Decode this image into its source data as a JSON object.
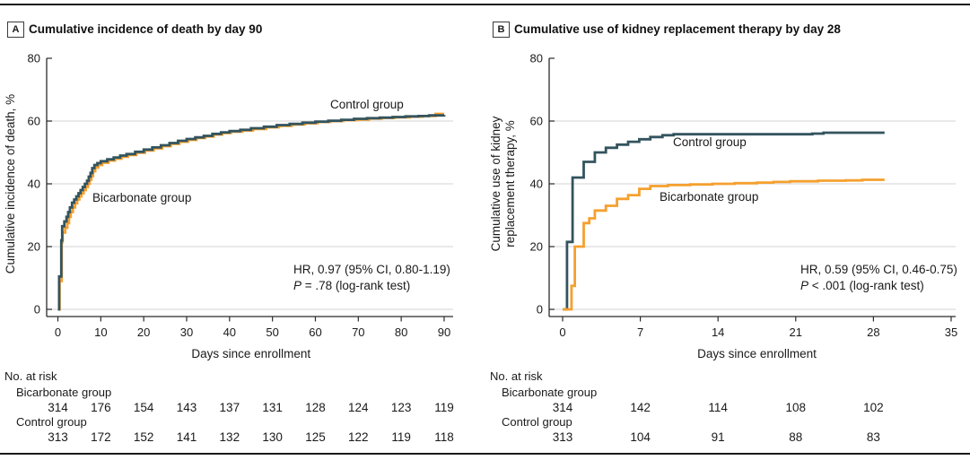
{
  "chart_data": [
    {
      "type": "line",
      "step": true,
      "panel": "A",
      "title": "Cumulative incidence of death by day 90",
      "xlabel": "Days since enrollment",
      "ylabel": "Cumulative incidence of death, %",
      "ylabel_lines": [
        "Cumulative incidence of death, %"
      ],
      "xlim": [
        0,
        90
      ],
      "ylim": [
        0,
        80
      ],
      "x_ticks": [
        0,
        10,
        20,
        30,
        40,
        50,
        60,
        70,
        80,
        90
      ],
      "y_ticks": [
        0,
        20,
        40,
        60,
        80
      ],
      "grid": "horizontal",
      "legend_position": "inline-labels",
      "annotation": [
        "HR, 0.97 (95% CI, 0.80-1.19)",
        "P = .78 (log-rank test)"
      ],
      "series": [
        {
          "name": "Bicarbonate group",
          "color": "#F5A02F",
          "points": [
            [
              0,
              0
            ],
            [
              0.4,
              9
            ],
            [
              0.9,
              21.5
            ],
            [
              1.1,
              24.5
            ],
            [
              1.7,
              26
            ],
            [
              2.2,
              27.5
            ],
            [
              2.6,
              29.5
            ],
            [
              3.0,
              31
            ],
            [
              3.5,
              32.5
            ],
            [
              4.0,
              33.8
            ],
            [
              4.5,
              35
            ],
            [
              5.0,
              36
            ],
            [
              5.5,
              37
            ],
            [
              6.0,
              38
            ],
            [
              6.5,
              39
            ],
            [
              7.0,
              40
            ],
            [
              7.4,
              41.3
            ],
            [
              7.8,
              42.5
            ],
            [
              8.2,
              44
            ],
            [
              8.7,
              45.2
            ],
            [
              9.4,
              46
            ],
            [
              10.3,
              46.7
            ],
            [
              11.8,
              47.4
            ],
            [
              13.3,
              48
            ],
            [
              14.8,
              48.6
            ],
            [
              16.3,
              49.2
            ],
            [
              18.3,
              49.9
            ],
            [
              20.3,
              50.6
            ],
            [
              22.3,
              51.3
            ],
            [
              24.3,
              52
            ],
            [
              26.3,
              52.7
            ],
            [
              28.3,
              53.4
            ],
            [
              30.3,
              54
            ],
            [
              32.3,
              54.6
            ],
            [
              34.3,
              55.1
            ],
            [
              36.3,
              55.7
            ],
            [
              38.3,
              56.2
            ],
            [
              40.3,
              56.6
            ],
            [
              43,
              57
            ],
            [
              45.5,
              57.5
            ],
            [
              48.5,
              58
            ],
            [
              51.5,
              58.5
            ],
            [
              54.5,
              58.9
            ],
            [
              57.5,
              59.3
            ],
            [
              60.5,
              59.7
            ],
            [
              63.5,
              60
            ],
            [
              66.5,
              60.3
            ],
            [
              69.5,
              60.5
            ],
            [
              72.5,
              60.8
            ],
            [
              75.5,
              61
            ],
            [
              78.5,
              61.2
            ],
            [
              82,
              61.4
            ],
            [
              85,
              61.6
            ],
            [
              88,
              62.3
            ],
            [
              90,
              62.3
            ]
          ]
        },
        {
          "name": "Control group",
          "color": "#33545E",
          "points": [
            [
              0,
              0
            ],
            [
              0.3,
              10.5
            ],
            [
              0.8,
              22
            ],
            [
              1.0,
              26.5
            ],
            [
              1.5,
              28
            ],
            [
              2.0,
              29.5
            ],
            [
              2.4,
              31
            ],
            [
              2.8,
              32.5
            ],
            [
              3.3,
              34
            ],
            [
              3.8,
              35
            ],
            [
              4.3,
              36
            ],
            [
              4.8,
              37
            ],
            [
              5.3,
              38
            ],
            [
              5.8,
              39
            ],
            [
              6.3,
              40
            ],
            [
              6.8,
              41
            ],
            [
              7.2,
              42.3
            ],
            [
              7.6,
              43.5
            ],
            [
              8.0,
              45
            ],
            [
              8.5,
              46
            ],
            [
              9.2,
              46.6
            ],
            [
              10,
              47.2
            ],
            [
              11.5,
              47.8
            ],
            [
              13,
              48.4
            ],
            [
              14.5,
              49
            ],
            [
              16,
              49.5
            ],
            [
              18,
              50.2
            ],
            [
              20,
              50.9
            ],
            [
              22,
              51.6
            ],
            [
              24,
              52.3
            ],
            [
              26,
              53
            ],
            [
              28,
              53.7
            ],
            [
              30,
              54.3
            ],
            [
              32,
              54.8
            ],
            [
              34,
              55.3
            ],
            [
              36,
              55.9
            ],
            [
              38,
              56.4
            ],
            [
              40,
              56.8
            ],
            [
              42.5,
              57.2
            ],
            [
              45,
              57.7
            ],
            [
              48,
              58.2
            ],
            [
              51,
              58.7
            ],
            [
              54,
              59.1
            ],
            [
              57,
              59.5
            ],
            [
              60,
              59.8
            ],
            [
              63,
              60.1
            ],
            [
              66,
              60.4
            ],
            [
              69,
              60.7
            ],
            [
              72,
              60.9
            ],
            [
              75,
              61.1
            ],
            [
              78,
              61.3
            ],
            [
              81,
              61.5
            ],
            [
              84,
              61.6
            ],
            [
              86.5,
              61.8
            ],
            [
              90,
              61.9
            ]
          ]
        }
      ],
      "risk_table": {
        "header": "No. at risk",
        "days": [
          0,
          10,
          20,
          30,
          40,
          50,
          60,
          70,
          80,
          90
        ],
        "rows": [
          {
            "label": "Bicarbonate group",
            "values": [
              314,
              176,
              154,
              143,
              137,
              131,
              128,
              124,
              123,
              119
            ]
          },
          {
            "label": "Control group",
            "values": [
              313,
              172,
              152,
              141,
              132,
              130,
              125,
              122,
              119,
              118
            ]
          }
        ]
      }
    },
    {
      "type": "line",
      "step": true,
      "panel": "B",
      "title": "Cumulative use of kidney replacement therapy by day 28",
      "xlabel": "Days since enrollment",
      "ylabel": "Cumulative use of kidney replacement therapy, %",
      "ylabel_lines": [
        "Cumulative use of kidney",
        "replacement therapy, %"
      ],
      "xlim": [
        0,
        35
      ],
      "ylim": [
        0,
        80
      ],
      "x_ticks": [
        0,
        7,
        14,
        21,
        28,
        35
      ],
      "y_ticks": [
        0,
        20,
        40,
        60,
        80
      ],
      "grid": "horizontal",
      "legend_position": "inline-labels",
      "annotation": [
        "HR, 0.59 (95% CI, 0.46-0.75)",
        "P < .001 (log-rank test)"
      ],
      "series": [
        {
          "name": "Control group",
          "color": "#33545E",
          "points": [
            [
              0,
              0
            ],
            [
              0.4,
              21.5
            ],
            [
              0.9,
              42
            ],
            [
              1.9,
              47
            ],
            [
              2.9,
              50
            ],
            [
              3.9,
              51.5
            ],
            [
              4.9,
              52.5
            ],
            [
              5.9,
              53.4
            ],
            [
              6.9,
              54.2
            ],
            [
              7.9,
              54.9
            ],
            [
              9,
              55.5
            ],
            [
              10,
              55.8
            ],
            [
              22.5,
              56
            ],
            [
              23.5,
              56.3
            ],
            [
              29,
              56.3
            ]
          ]
        },
        {
          "name": "Bicarbonate group",
          "color": "#F5A02F",
          "points": [
            [
              0,
              0
            ],
            [
              0.8,
              7.5
            ],
            [
              1.1,
              20
            ],
            [
              1.9,
              27.5
            ],
            [
              2.4,
              29
            ],
            [
              2.9,
              31.5
            ],
            [
              3.9,
              33
            ],
            [
              4.9,
              35.2
            ],
            [
              5.9,
              36.4
            ],
            [
              6.9,
              38.4
            ],
            [
              7.9,
              39.3
            ],
            [
              9.5,
              39.6
            ],
            [
              11.5,
              39.8
            ],
            [
              13.5,
              40
            ],
            [
              15.5,
              40.2
            ],
            [
              17.5,
              40.4
            ],
            [
              19,
              40.6
            ],
            [
              20.5,
              40.8
            ],
            [
              23,
              41
            ],
            [
              25.5,
              41.1
            ],
            [
              27,
              41.3
            ],
            [
              29,
              41.3
            ]
          ]
        }
      ],
      "risk_table": {
        "header": "No. at risk",
        "days": [
          0,
          7,
          14,
          21,
          28
        ],
        "rows": [
          {
            "label": "Bicarbonate group",
            "values": [
              314,
              142,
              114,
              108,
              102
            ]
          },
          {
            "label": "Control group",
            "values": [
              313,
              104,
              91,
              88,
              83
            ]
          }
        ]
      }
    }
  ],
  "colors": {
    "control_group": "#33545E",
    "bicarbonate_group": "#F5A02F",
    "gridline": "#DCDCDC",
    "axis": "#2B2B2B",
    "rule": "#1A1A1A",
    "text": "#1A1A1A"
  }
}
